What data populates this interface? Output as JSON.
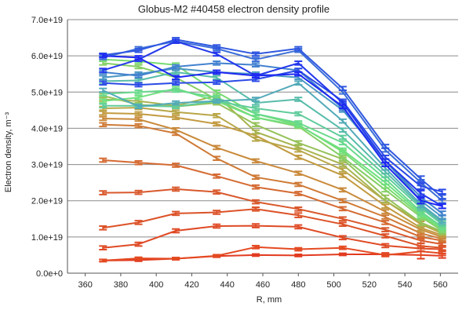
{
  "chart_data": {
    "type": "line",
    "title": "Globus-M2 #40458 electron density profile",
    "xlabel": "R, mm",
    "ylabel": "Electron density, m⁻³",
    "xlim": [
      350,
      570
    ],
    "ylim": [
      0,
      7e+19
    ],
    "grid": "horizontal",
    "error_bars": true,
    "x_ticks": [
      360,
      380,
      400,
      420,
      440,
      460,
      480,
      500,
      520,
      540,
      560
    ],
    "x_tick_labels": [
      "360",
      "380",
      "400",
      "420",
      "440",
      "460",
      "480",
      "500",
      "520",
      "540",
      "560"
    ],
    "y_ticks": [
      0,
      1e+19,
      2e+19,
      3e+19,
      4e+19,
      5e+19,
      6e+19,
      7e+19
    ],
    "y_tick_labels": [
      "0.0e+0",
      "1.0e+19",
      "2.0e+19",
      "3.0e+19",
      "4.0e+19",
      "5.0e+19",
      "6.0e+19",
      "7.0e+19"
    ],
    "x": [
      370,
      390,
      411,
      434,
      456,
      480,
      505,
      529,
      549,
      561
    ],
    "series": [
      {
        "color": "#e23b20",
        "values": [
          3.5e+18,
          3.6e+18,
          4e+18,
          4.7e+18,
          5e+18,
          4.9e+18,
          5.2e+18,
          5.2e+18,
          5e+18,
          4.8e+18
        ],
        "errors": [
          3e+17,
          3e+17,
          3e+17,
          3e+17,
          3e+17,
          3e+17,
          3e+17,
          4e+17,
          1e+18,
          6e+17
        ]
      },
      {
        "color": "#e44a22",
        "values": [
          3.5e+18,
          4.1e+18,
          4e+18,
          4.8e+18,
          7.2e+18,
          6.6e+18,
          7e+18,
          5e+18,
          6e+18,
          5.5e+18
        ],
        "errors": [
          3e+17,
          3e+17,
          3e+17,
          3e+17,
          4e+17,
          4e+17,
          4e+17,
          4e+17,
          1e+18,
          6e+17
        ]
      },
      {
        "color": "#df4a25",
        "values": [
          7e+18,
          8e+18,
          1.17e+19,
          1.3e+19,
          1.31e+19,
          1.28e+19,
          9.8e+18,
          7.6e+18,
          6.8e+18,
          6.6e+18
        ],
        "errors": [
          5e+17,
          5e+17,
          5e+17,
          5e+17,
          5e+17,
          5e+17,
          5e+17,
          5e+17,
          7e+17,
          6e+17
        ]
      },
      {
        "color": "#dc5228",
        "values": [
          1.25e+19,
          1.4e+19,
          1.65e+19,
          1.68e+19,
          1.77e+19,
          1.6e+19,
          1.35e+19,
          1.03e+19,
          7.5e+18,
          7e+18
        ],
        "errors": [
          5e+17,
          5e+17,
          5e+17,
          5e+17,
          5e+17,
          6e+17,
          5e+17,
          5e+17,
          7e+17,
          6e+17
        ]
      },
      {
        "color": "#d9582c",
        "values": [
          2.22e+19,
          2.23e+19,
          2.32e+19,
          2.24e+19,
          1.97e+19,
          1.77e+19,
          1.5e+19,
          1.2e+19,
          9e+18,
          8e+18
        ],
        "errors": [
          5e+17,
          5e+17,
          5e+17,
          5e+17,
          5e+17,
          5e+17,
          5e+17,
          5e+17,
          7e+17,
          6e+17
        ]
      },
      {
        "color": "#d56a32",
        "values": [
          3.12e+19,
          3.05e+19,
          2.98e+19,
          2.68e+19,
          2.38e+19,
          2.2e+19,
          1.78e+19,
          1.4e+19,
          1e+19,
          9e+18
        ],
        "errors": [
          5e+17,
          5e+17,
          5e+17,
          5e+17,
          5e+17,
          5e+17,
          5e+17,
          5e+17,
          7e+17,
          6e+17
        ]
      },
      {
        "color": "#cf7a36",
        "values": [
          4.1e+19,
          4.07e+19,
          3.86e+19,
          3.17e+19,
          2.65e+19,
          2.45e+19,
          2e+19,
          1.55e+19,
          1.1e+19,
          9.5e+18
        ],
        "errors": [
          5e+17,
          5e+17,
          5e+17,
          5e+17,
          5e+17,
          5e+17,
          5e+17,
          5e+17,
          8e+17,
          6e+17
        ]
      },
      {
        "color": "#c98a3b",
        "values": [
          4.27e+19,
          4.25e+19,
          3.96e+19,
          3.47e+19,
          3.1e+19,
          2.76e+19,
          2.3e+19,
          1.7e+19,
          1.2e+19,
          1e+19
        ],
        "errors": [
          5e+17,
          5e+17,
          5e+17,
          5e+17,
          5e+17,
          5e+17,
          5e+17,
          5e+17,
          8e+17,
          6e+17
        ]
      },
      {
        "color": "#c29a40",
        "values": [
          4.42e+19,
          4.4e+19,
          4.3e+19,
          4.12e+19,
          3.8e+19,
          3.2e+19,
          2.7e+19,
          1.85e+19,
          1.25e+19,
          1.05e+19
        ],
        "errors": [
          5e+17,
          5e+17,
          5e+17,
          5e+17,
          5e+17,
          5e+17,
          5e+17,
          5e+17,
          8e+17,
          6e+17
        ]
      },
      {
        "color": "#b8a648",
        "values": [
          4.55e+19,
          4.57e+19,
          4.45e+19,
          4.35e+19,
          3.7e+19,
          3.4e+19,
          2.85e+19,
          2e+19,
          1.35e+19,
          1.1e+19
        ],
        "errors": [
          5e+17,
          5e+17,
          5e+17,
          5e+17,
          5e+17,
          5e+17,
          5e+17,
          5e+17,
          8e+17,
          6e+17
        ]
      },
      {
        "color": "#a8b450",
        "values": [
          4.8e+19,
          4.75e+19,
          4.62e+19,
          4.9e+19,
          3.9e+19,
          3.48e+19,
          3e+19,
          2e+19,
          1.4e+19,
          1.12e+19
        ],
        "errors": [
          5e+17,
          5e+17,
          5e+17,
          5e+17,
          5e+17,
          5e+17,
          5e+17,
          5e+17,
          8e+17,
          6e+17
        ]
      },
      {
        "color": "#96c25a",
        "values": [
          4.9e+19,
          4.65e+19,
          4.6e+19,
          4.7e+19,
          4.1e+19,
          3.6e+19,
          3.15e+19,
          2.1e+19,
          1.4e+19,
          1.15e+19
        ],
        "errors": [
          5e+17,
          5e+17,
          5e+17,
          5e+17,
          5e+17,
          5e+17,
          5e+17,
          5e+17,
          8e+17,
          6e+17
        ]
      },
      {
        "color": "#86cf66",
        "values": [
          5.8e+19,
          5.7e+19,
          5.4e+19,
          4.8e+19,
          4.3e+19,
          4.05e+19,
          3.2e+19,
          2.3e+19,
          1.55e+19,
          1.18e+19
        ],
        "errors": [
          5e+17,
          5e+17,
          5e+17,
          5e+17,
          5e+17,
          5e+17,
          5e+17,
          5e+17,
          8e+17,
          6e+17
        ]
      },
      {
        "color": "#78db72",
        "values": [
          5.9e+19,
          5.85e+19,
          5.75e+19,
          5e+19,
          4.4e+19,
          4.1e+19,
          3.35e+19,
          2.4e+19,
          1.6e+19,
          1.2e+19
        ],
        "errors": [
          5e+17,
          5e+17,
          5e+17,
          5e+17,
          5e+17,
          5e+17,
          5e+17,
          5e+17,
          8e+17,
          6e+17
        ]
      },
      {
        "color": "#6fe07e",
        "values": [
          4.75e+19,
          4.85e+19,
          5.1e+19,
          4.75e+19,
          4.3e+19,
          4.08e+19,
          3.4e+19,
          2.5e+19,
          1.65e+19,
          1.25e+19
        ],
        "errors": [
          5e+17,
          5e+17,
          5e+17,
          5e+17,
          5e+17,
          5e+17,
          5e+17,
          5e+17,
          8e+17,
          6e+17
        ]
      },
      {
        "color": "#68d98c",
        "values": [
          4.95e+19,
          5e+19,
          5.05e+19,
          4.85e+19,
          4.4e+19,
          4.15e+19,
          3.6e+19,
          2.6e+19,
          1.7e+19,
          1.28e+19
        ],
        "errors": [
          5e+17,
          5e+17,
          5e+17,
          5e+17,
          5e+17,
          5e+17,
          5e+17,
          5e+17,
          8e+17,
          6e+17
        ]
      },
      {
        "color": "#60cc9c",
        "values": [
          4.62e+19,
          4.62e+19,
          4.6e+19,
          4.75e+19,
          4.55e+19,
          4.4e+19,
          3.75e+19,
          2.7e+19,
          1.8e+19,
          1.35e+19
        ],
        "errors": [
          5e+17,
          5e+17,
          5e+17,
          5e+17,
          5e+17,
          5e+17,
          5e+17,
          5e+17,
          8e+17,
          6e+17
        ]
      },
      {
        "color": "#58bcaa",
        "values": [
          5.3e+19,
          5.32e+19,
          5.55e+19,
          5.4e+19,
          4.7e+19,
          4.8e+19,
          3.95e+19,
          2.8e+19,
          1.85e+19,
          1.4e+19
        ],
        "errors": [
          5e+17,
          5e+17,
          5e+17,
          5e+17,
          5e+17,
          5e+17,
          5e+17,
          5e+17,
          8e+17,
          6e+17
        ]
      },
      {
        "color": "#52aab8",
        "values": [
          5.05e+19,
          4.6e+19,
          4.7e+19,
          4.75e+19,
          4.8e+19,
          5.25e+19,
          4.2e+19,
          2.9e+19,
          1.9e+19,
          1.45e+19
        ],
        "errors": [
          5e+17,
          5e+17,
          5e+17,
          5e+17,
          5e+17,
          5e+17,
          5e+17,
          5e+17,
          8e+17,
          6e+17
        ]
      },
      {
        "color": "#4a96c4",
        "values": [
          5.4e+19,
          5.5e+19,
          5.65e+19,
          5.55e+19,
          5.5e+19,
          5.4e+19,
          4.5e+19,
          3.1e+19,
          2e+19,
          1.55e+19
        ],
        "errors": [
          5e+17,
          5e+17,
          5e+17,
          5e+17,
          5e+17,
          5e+17,
          5e+17,
          5e+17,
          8e+17,
          6e+17
        ]
      },
      {
        "color": "#4382cf",
        "values": [
          5.55e+19,
          5.45e+19,
          5.7e+19,
          5.8e+19,
          5.75e+19,
          5.6e+19,
          4.55e+19,
          3.1e+19,
          2.1e+19,
          1.65e+19
        ],
        "errors": [
          5e+17,
          5e+17,
          5e+17,
          5e+17,
          5e+17,
          5e+17,
          5e+17,
          5e+17,
          8e+17,
          6e+17
        ]
      },
      {
        "color": "#3b6ed8",
        "values": [
          5.95e+19,
          6.2e+19,
          6.4e+19,
          6.2e+19,
          5.9e+19,
          6.15e+19,
          5e+19,
          3.4e+19,
          2.5e+19,
          2e+19
        ],
        "errors": [
          5e+17,
          5e+17,
          5e+17,
          5e+17,
          5e+17,
          5e+17,
          5e+17,
          5e+17,
          8e+17,
          6e+17
        ]
      },
      {
        "color": "#3058e0",
        "values": [
          6.02e+19,
          6.15e+19,
          6.45e+19,
          6.25e+19,
          6.05e+19,
          6.2e+19,
          5.1e+19,
          3.5e+19,
          2.6e+19,
          2.1e+19
        ],
        "errors": [
          5e+17,
          5e+17,
          5e+17,
          5e+17,
          5e+17,
          5e+17,
          5e+17,
          5e+17,
          8e+17,
          6e+17
        ]
      },
      {
        "color": "#2a4ae6",
        "values": [
          5.25e+19,
          5.2e+19,
          5.25e+19,
          5.27e+19,
          5.35e+19,
          5.6e+19,
          4.75e+19,
          3.2e+19,
          2.4e+19,
          2.25e+19
        ],
        "errors": [
          5e+17,
          5e+17,
          5e+17,
          5e+17,
          5e+17,
          5e+17,
          5e+17,
          5e+17,
          8e+17,
          6e+17
        ]
      },
      {
        "color": "#2438ec",
        "values": [
          5.6e+19,
          5.9e+19,
          6.4e+19,
          6.05e+19,
          5.45e+19,
          5.8e+19,
          4.7e+19,
          3.1e+19,
          2.2e+19,
          1.85e+19
        ],
        "errors": [
          5e+17,
          5e+17,
          5e+17,
          5e+17,
          5e+17,
          5e+17,
          5e+17,
          5e+17,
          8e+17,
          6e+17
        ]
      },
      {
        "color": "#1e28f2",
        "values": [
          6e+19,
          5.95e+19,
          5.4e+19,
          5.55e+19,
          5.45e+19,
          5.5e+19,
          4.6e+19,
          3e+19,
          2e+19,
          1.85e+19
        ],
        "errors": [
          5e+17,
          5e+17,
          5e+17,
          5e+17,
          5e+17,
          5e+17,
          5e+17,
          5e+17,
          8e+17,
          6e+17
        ]
      }
    ]
  }
}
